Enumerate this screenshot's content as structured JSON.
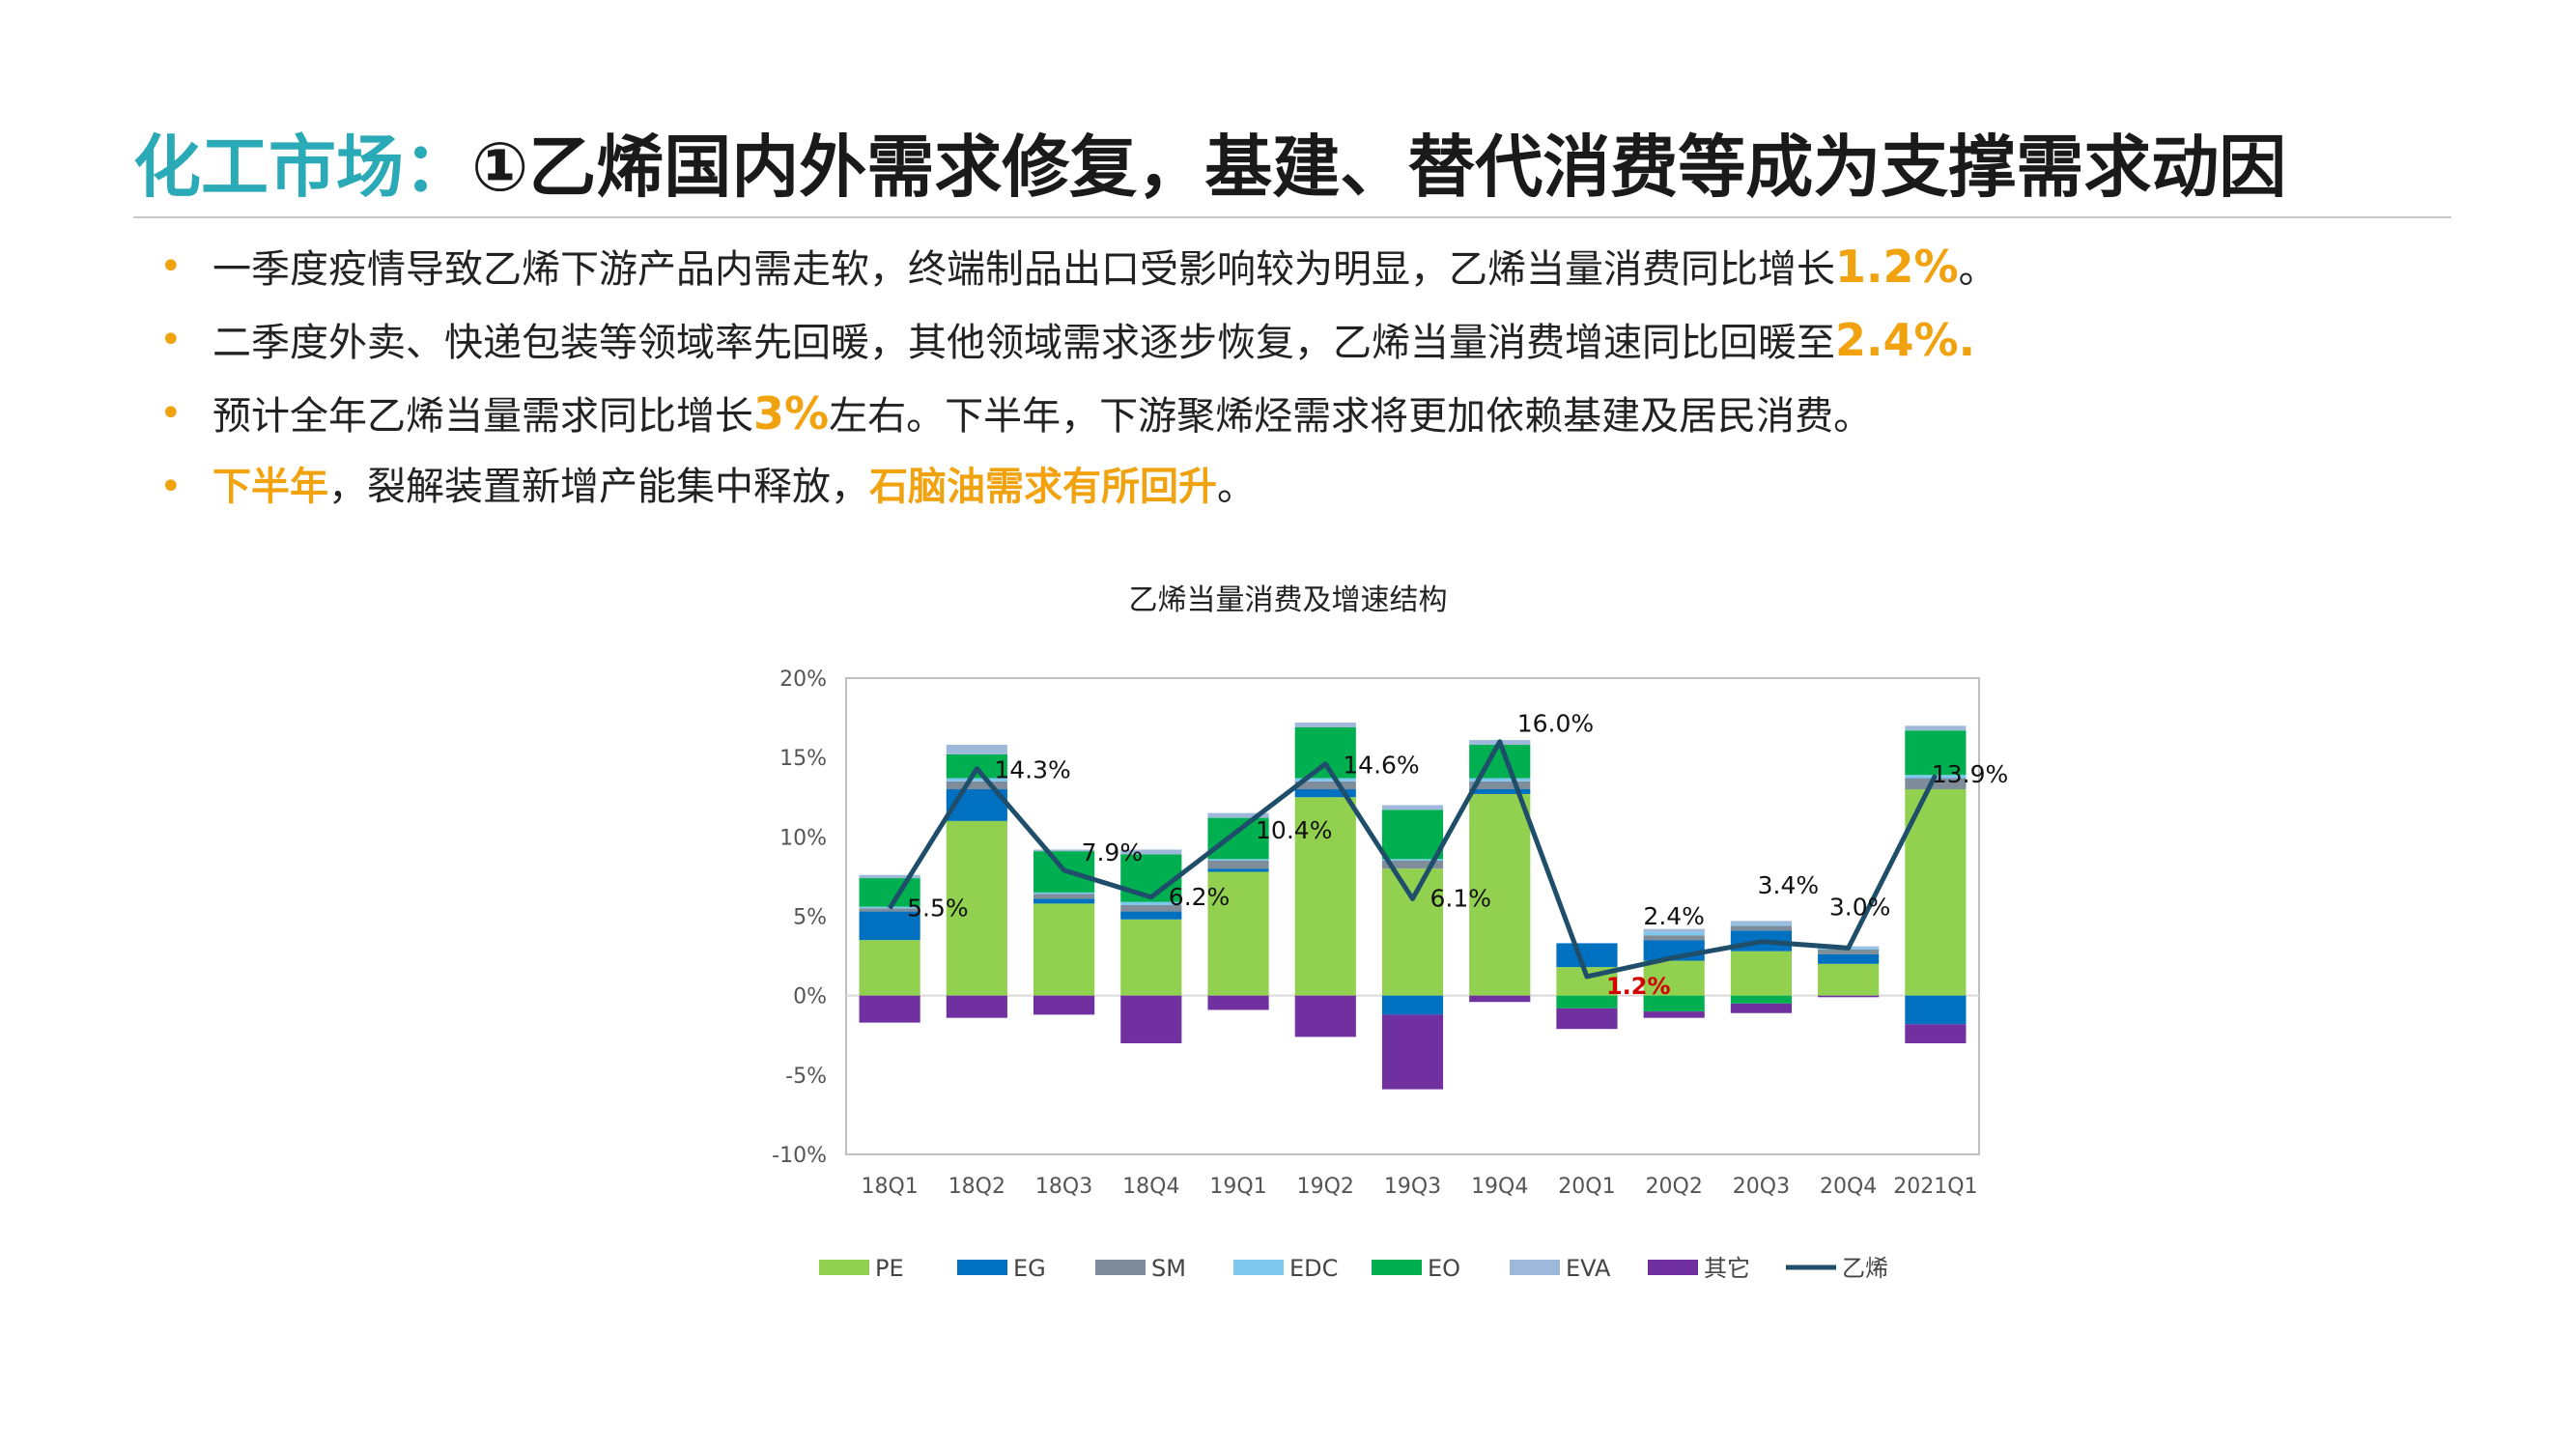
{
  "header": {
    "title_accent": "化工市场：",
    "title_main": "①乙烯国内外需求修复，基建、替代消费等成为支撑需求动因"
  },
  "bullets": [
    {
      "pre": "一季度疫情导致乙烯下游产品内需走软，终端制品出口受影响较为明显，乙烯当量消费同比增长",
      "hl": "1.2%",
      "post": "。"
    },
    {
      "pre": "二季度外卖、快递包装等领域率先回暖，其他领域需求逐步恢复，乙烯当量消费增速同比回暖至",
      "hl": "2.4%.",
      "post": ""
    },
    {
      "pre": "预计全年乙烯当量需求同比增长",
      "hl": "3%",
      "post": "左右。下半年，下游聚烯烃需求将更加依赖基建及居民消费。"
    },
    {
      "hl1": "下半年",
      "mid": "，裂解装置新增产能集中释放，",
      "hl2": "石脑油需求有所回升",
      "post": "。"
    }
  ],
  "bullet_marker": "•",
  "colors": {
    "accent": "#2aa9b7",
    "highlight": "#f0a20f"
  },
  "chart_data": {
    "type": "bar",
    "stacked": true,
    "title": "乙烯当量消费及增速结构",
    "categories": [
      "18Q1",
      "18Q2",
      "18Q3",
      "18Q4",
      "19Q1",
      "19Q2",
      "19Q3",
      "19Q4",
      "20Q1",
      "20Q2",
      "20Q3",
      "20Q4",
      "2021Q1"
    ],
    "y_ticks": [
      "20%",
      "15%",
      "10%",
      "5%",
      "0%",
      "-5%",
      "-10%"
    ],
    "ylim": [
      -10,
      20
    ],
    "grid": false,
    "legend_position": "bottom",
    "series": [
      {
        "name": "PE",
        "color": "#92d050",
        "values": [
          3.5,
          11.0,
          5.8,
          4.8,
          7.8,
          12.5,
          8.0,
          12.7,
          1.8,
          2.2,
          2.8,
          2.0,
          13.0
        ]
      },
      {
        "name": "EG",
        "color": "#0070c0",
        "values": [
          1.8,
          2.0,
          0.3,
          0.5,
          0.2,
          0.5,
          -1.2,
          0.3,
          1.5,
          1.3,
          1.3,
          0.6,
          -1.8
        ]
      },
      {
        "name": "SM",
        "color": "#7f8c99",
        "values": [
          0.2,
          0.5,
          0.3,
          0.4,
          0.5,
          0.5,
          0.5,
          0.5,
          0.0,
          0.3,
          0.3,
          0.3,
          0.7
        ]
      },
      {
        "name": "EDC",
        "color": "#7ec8f0",
        "values": [
          0.1,
          0.2,
          0.1,
          0.2,
          0.1,
          0.2,
          0.1,
          0.2,
          0.0,
          0.2,
          0.1,
          0.1,
          0.2
        ]
      },
      {
        "name": "EO",
        "color": "#00b050",
        "values": [
          1.8,
          1.5,
          2.6,
          3.0,
          2.6,
          3.2,
          3.1,
          2.1,
          -0.8,
          -1.0,
          -0.5,
          0.0,
          2.8
        ]
      },
      {
        "name": "EVA",
        "color": "#9db8d9",
        "values": [
          0.2,
          0.6,
          0.1,
          0.3,
          0.3,
          0.3,
          0.3,
          0.3,
          0.0,
          0.2,
          0.2,
          0.1,
          0.3
        ]
      },
      {
        "name": "其它",
        "color": "#7030a0",
        "values": [
          -1.7,
          -1.4,
          -1.2,
          -3.0,
          -0.9,
          -2.6,
          -4.7,
          -0.4,
          -1.3,
          -0.4,
          -0.6,
          -0.1,
          -1.2
        ]
      }
    ],
    "line": {
      "name": "乙烯",
      "color": "#1f4e6b",
      "values": [
        5.5,
        14.3,
        7.9,
        6.2,
        10.4,
        14.6,
        6.1,
        16.0,
        1.2,
        2.4,
        3.4,
        3.0,
        13.9
      ],
      "labels": [
        "5.5%",
        "14.3%",
        "7.9%",
        "6.2%",
        "10.4%",
        "14.6%",
        "6.1%",
        "16.0%",
        "1.2%",
        "2.4%",
        "3.4%",
        "3.0%",
        "13.9%"
      ]
    }
  }
}
